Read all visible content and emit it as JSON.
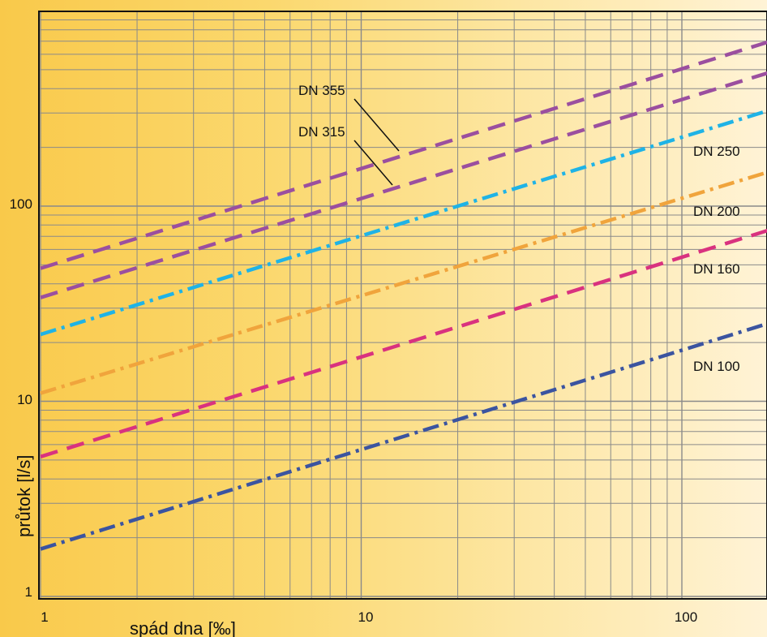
{
  "chart_data": {
    "type": "line",
    "title": "",
    "xlabel": "spád dna [‰]",
    "ylabel": "průtok [l/s]",
    "xscale": "log",
    "yscale": "log",
    "xlim": [
      1,
      200
    ],
    "ylim": [
      1,
      1000
    ],
    "x_ticks": [
      "1",
      "10",
      "100"
    ],
    "y_ticks": [
      "1",
      "10",
      "100"
    ],
    "grid": true,
    "legend": "inline labels",
    "series": [
      {
        "name": "DN 355",
        "color": "#9b4f9f",
        "dash": "dash",
        "x": [
          1,
          200
        ],
        "y": [
          48,
          720
        ]
      },
      {
        "name": "DN 315",
        "color": "#9b4f9f",
        "dash": "dash",
        "x": [
          1,
          200
        ],
        "y": [
          34,
          500
        ]
      },
      {
        "name": "DN 250",
        "color": "#1fb3e6",
        "dash": "dashdot",
        "x": [
          1,
          200
        ],
        "y": [
          22,
          320
        ]
      },
      {
        "name": "DN 200",
        "color": "#f0a43c",
        "dash": "dashdot",
        "x": [
          1,
          200
        ],
        "y": [
          11,
          155
        ]
      },
      {
        "name": "DN 160",
        "color": "#d9327f",
        "dash": "dash",
        "x": [
          1,
          200
        ],
        "y": [
          5.2,
          78
        ]
      },
      {
        "name": "DN 100",
        "color": "#3b54a0",
        "dash": "dashdot",
        "x": [
          1,
          200
        ],
        "y": [
          1.75,
          26
        ]
      }
    ]
  }
}
